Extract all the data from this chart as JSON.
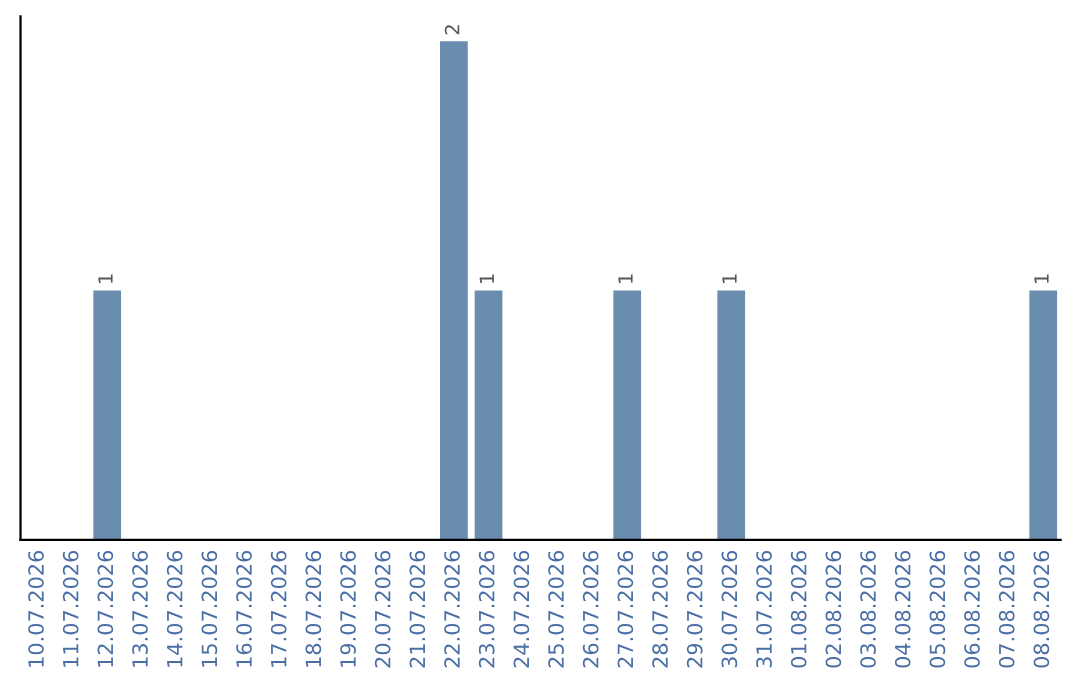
{
  "chart_data": {
    "type": "bar",
    "categories": [
      "10.07.2026",
      "11.07.2026",
      "12.07.2026",
      "13.07.2026",
      "14.07.2026",
      "15.07.2026",
      "16.07.2026",
      "17.07.2026",
      "18.07.2026",
      "19.07.2026",
      "20.07.2026",
      "21.07.2026",
      "22.07.2026",
      "23.07.2026",
      "24.07.2026",
      "25.07.2026",
      "26.07.2026",
      "27.07.2026",
      "28.07.2026",
      "29.07.2026",
      "30.07.2026",
      "31.07.2026",
      "01.08.2026",
      "02.08.2026",
      "03.08.2026",
      "04.08.2026",
      "05.08.2026",
      "06.08.2026",
      "07.08.2026",
      "08.08.2026"
    ],
    "values": [
      0,
      0,
      1,
      0,
      0,
      0,
      0,
      0,
      0,
      0,
      0,
      0,
      2,
      1,
      0,
      0,
      0,
      1,
      0,
      0,
      1,
      0,
      0,
      0,
      0,
      0,
      0,
      0,
      0,
      1
    ],
    "value_labels": [
      null,
      null,
      "1",
      null,
      null,
      null,
      null,
      null,
      null,
      null,
      null,
      null,
      "2",
      "1",
      null,
      null,
      null,
      "1",
      null,
      null,
      "1",
      null,
      null,
      null,
      null,
      null,
      null,
      null,
      null,
      "1"
    ],
    "color": "#6a8caf",
    "ylim": [
      0,
      2.1
    ],
    "tick_labels": "x",
    "grid": false,
    "legend": false
  }
}
